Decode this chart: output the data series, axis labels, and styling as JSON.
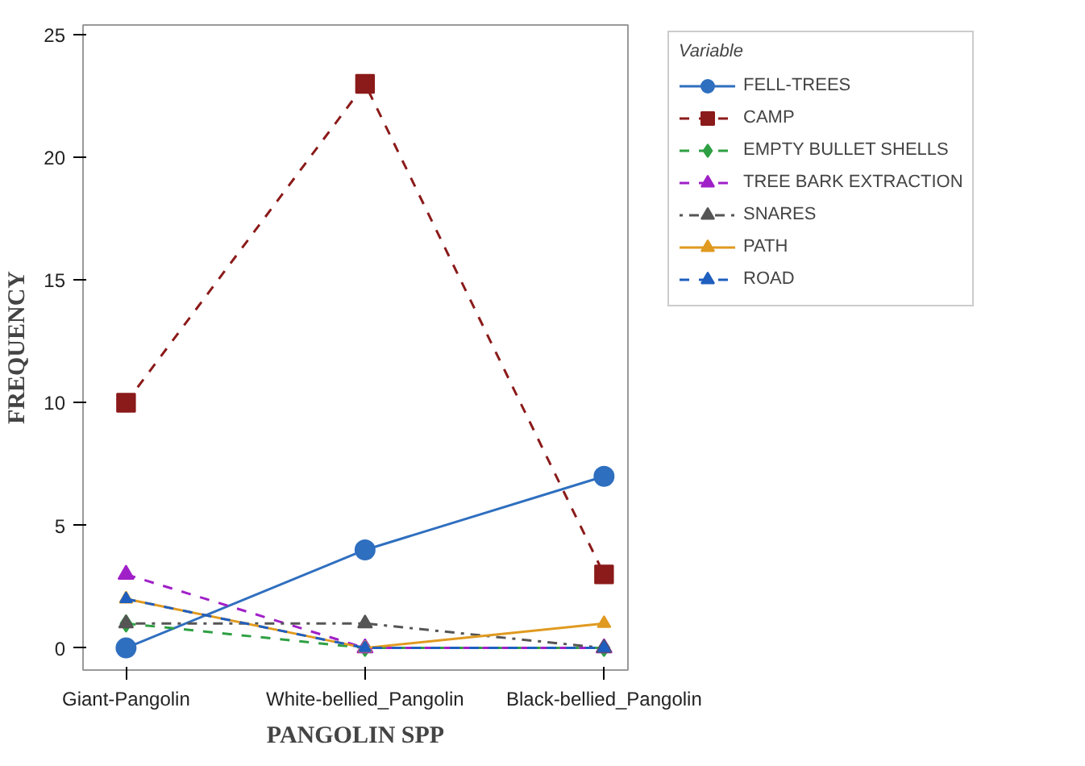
{
  "chart_data": {
    "type": "line",
    "xlabel": "PANGOLIN SPP",
    "ylabel": "FREQUENCY",
    "legend_title": "Variable",
    "categories": [
      "Giant-Pangolin",
      "White-bellied_Pangolin",
      "Black-bellied_Pangolin"
    ],
    "ylim": [
      -0.9,
      25.4
    ],
    "yticks": [
      0,
      5,
      10,
      15,
      20,
      25
    ],
    "grid": false,
    "legend": "right",
    "series": [
      {
        "name": "FELL-TREES",
        "color": "#2f6fbf",
        "values": [
          0,
          4,
          7
        ],
        "marker": "circle",
        "line_style": "solid"
      },
      {
        "name": "CAMP",
        "color": "#8b1a1a",
        "values": [
          10,
          23,
          3
        ],
        "marker": "square",
        "line_style": "dashed"
      },
      {
        "name": "EMPTY BULLET SHELLS",
        "color": "#2ea043",
        "values": [
          1,
          0,
          0
        ],
        "marker": "diamond",
        "line_style": "dashed"
      },
      {
        "name": "TREE BARK EXTRACTION",
        "color": "#a020c8",
        "values": [
          3,
          0,
          0
        ],
        "marker": "triangle",
        "line_style": "dashed"
      },
      {
        "name": "SNARES",
        "color": "#555555",
        "values": [
          1,
          1,
          0
        ],
        "marker": "triangle",
        "line_style": "dotted"
      },
      {
        "name": "PATH",
        "color": "#e09a20",
        "values": [
          2,
          0,
          1
        ],
        "marker": "triangle",
        "line_style": "solid"
      },
      {
        "name": "ROAD",
        "color": "#1f5fbf",
        "values": [
          2,
          0,
          0
        ],
        "marker": "triangle",
        "line_style": "dashed"
      }
    ]
  }
}
